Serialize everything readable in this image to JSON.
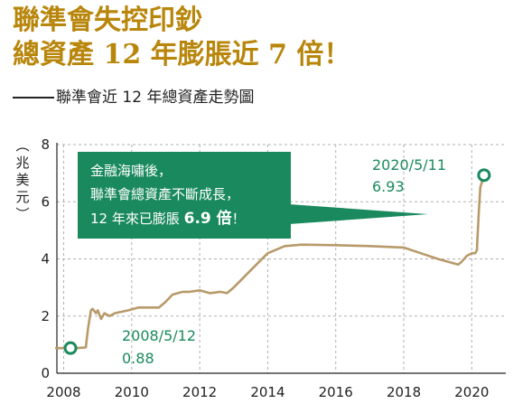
{
  "headline": {
    "line1": "聯準會失控印鈔",
    "line2": "總資產 12 年膨脹近 7 倍！"
  },
  "subtitle": "聯準會近 12 年總資產走勢圖",
  "unit_label": "兆美元",
  "callout": {
    "line1": "金融海嘯後，",
    "line2": "聯準會總資產不斷成長，",
    "line3_prefix": "12 年來已膨脹 ",
    "line3_bold": "6.9 倍",
    "line3_suffix": "！"
  },
  "annotations": [
    {
      "date": "2008/5/12",
      "value": "0.88"
    },
    {
      "date": "2020/5/11",
      "value": "6.93"
    }
  ],
  "colors": {
    "headline": "#b8860b",
    "line": "#b89a6a",
    "marker": "#1a8a5e",
    "callout_bg": "#1a8a5e"
  },
  "chart_data": {
    "type": "line",
    "title": "聯準會近 12 年總資產走勢圖",
    "ylabel": "兆美元",
    "xlabel": "",
    "xlim": [
      2007.8,
      2021.0
    ],
    "ylim": [
      0,
      8
    ],
    "x_ticks": [
      2008,
      2010,
      2012,
      2014,
      2016,
      2018,
      2020
    ],
    "y_ticks": [
      0,
      2,
      4,
      6,
      8
    ],
    "grid": true,
    "legend": "none",
    "series": [
      {
        "x": [
          2007.75,
          2008.2,
          2008.36,
          2008.65,
          2008.72,
          2008.8,
          2008.85,
          2008.95,
          2009.0,
          2009.1,
          2009.2,
          2009.35,
          2009.5,
          2009.7,
          2009.9,
          2010.2,
          2010.5,
          2010.8,
          2011.0,
          2011.2,
          2011.5,
          2011.7,
          2012.0,
          2012.3,
          2012.6,
          2012.8,
          2013.0,
          2013.5,
          2014.0,
          2014.5,
          2015.0,
          2016.0,
          2017.0,
          2018.0,
          2018.5,
          2019.0,
          2019.6,
          2019.7,
          2019.85,
          2020.0,
          2020.1,
          2020.15,
          2020.2,
          2020.25,
          2020.36
        ],
        "y": [
          0.88,
          0.88,
          0.88,
          0.9,
          1.6,
          2.2,
          2.25,
          2.1,
          2.2,
          1.9,
          2.1,
          2.0,
          2.1,
          2.15,
          2.2,
          2.3,
          2.3,
          2.3,
          2.5,
          2.75,
          2.85,
          2.85,
          2.9,
          2.8,
          2.85,
          2.8,
          3.0,
          3.6,
          4.2,
          4.45,
          4.5,
          4.48,
          4.45,
          4.4,
          4.2,
          4.0,
          3.8,
          3.9,
          4.1,
          4.2,
          4.2,
          4.3,
          5.5,
          6.5,
          6.93
        ]
      }
    ]
  }
}
